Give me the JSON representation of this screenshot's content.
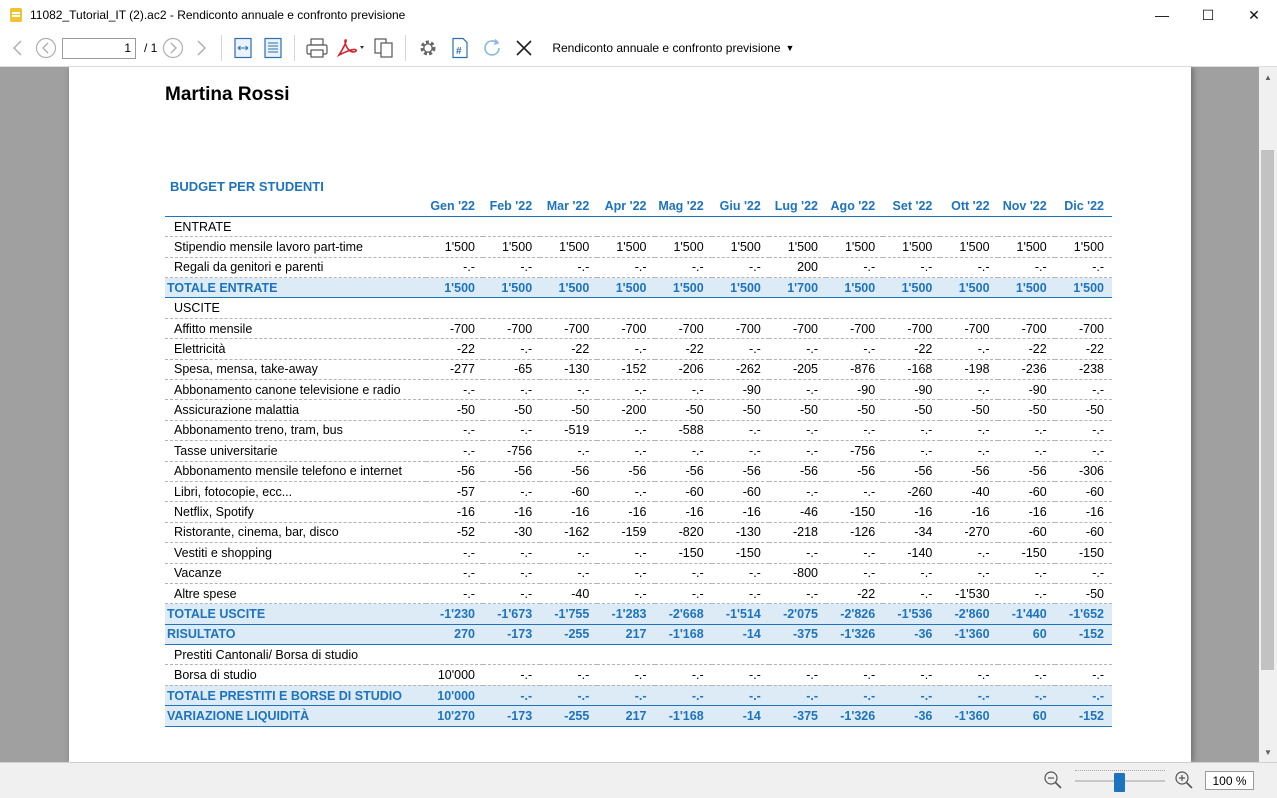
{
  "window": {
    "title": "11082_Tutorial_IT (2).ac2 - Rendiconto annuale e confronto previsione",
    "minimize": "—",
    "maximize": "☐",
    "close": "✕"
  },
  "toolbar": {
    "page_value": "1",
    "page_total": "/ 1",
    "report_name": "Rendiconto annuale e confronto previsione",
    "report_caret": "▼"
  },
  "report": {
    "owner": "Martina Rossi",
    "title": "BUDGET PER STUDENTI",
    "months": [
      "Gen '22",
      "Feb '22",
      "Mar '22",
      "Apr '22",
      "Mag '22",
      "Giu '22",
      "Lug '22",
      "Ago '22",
      "Set '22",
      "Ott '22",
      "Nov '22",
      "Dic '22"
    ],
    "rows": [
      {
        "type": "section",
        "label": "ENTRATE"
      },
      {
        "type": "line",
        "label": "Stipendio mensile lavoro part-time",
        "values": [
          "1'500",
          "1'500",
          "1'500",
          "1'500",
          "1'500",
          "1'500",
          "1'500",
          "1'500",
          "1'500",
          "1'500",
          "1'500",
          "1'500"
        ]
      },
      {
        "type": "line",
        "label": "Regali da genitori e parenti",
        "values": [
          "-.-",
          "-.-",
          "-.-",
          "-.-",
          "-.-",
          "-.-",
          "200",
          "-.-",
          "-.-",
          "-.-",
          "-.-",
          "-.-"
        ]
      },
      {
        "type": "total",
        "label": "TOTALE ENTRATE",
        "values": [
          "1'500",
          "1'500",
          "1'500",
          "1'500",
          "1'500",
          "1'500",
          "1'700",
          "1'500",
          "1'500",
          "1'500",
          "1'500",
          "1'500"
        ]
      },
      {
        "type": "section",
        "label": "USCITE"
      },
      {
        "type": "line",
        "label": "Affitto mensile",
        "values": [
          "-700",
          "-700",
          "-700",
          "-700",
          "-700",
          "-700",
          "-700",
          "-700",
          "-700",
          "-700",
          "-700",
          "-700"
        ]
      },
      {
        "type": "line",
        "label": "Elettricità",
        "values": [
          "-22",
          "-.-",
          "-22",
          "-.-",
          "-22",
          "-.-",
          "-.-",
          "-.-",
          "-22",
          "-.-",
          "-22",
          "-22"
        ]
      },
      {
        "type": "line",
        "label": "Spesa, mensa, take-away",
        "values": [
          "-277",
          "-65",
          "-130",
          "-152",
          "-206",
          "-262",
          "-205",
          "-876",
          "-168",
          "-198",
          "-236",
          "-238"
        ]
      },
      {
        "type": "line",
        "label": "Abbonamento canone televisione e radio",
        "values": [
          "-.-",
          "-.-",
          "-.-",
          "-.-",
          "-.-",
          "-90",
          "-.-",
          "-90",
          "-90",
          "-.-",
          "-90",
          "-.-"
        ]
      },
      {
        "type": "line",
        "label": "Assicurazione malattia",
        "values": [
          "-50",
          "-50",
          "-50",
          "-200",
          "-50",
          "-50",
          "-50",
          "-50",
          "-50",
          "-50",
          "-50",
          "-50"
        ]
      },
      {
        "type": "line",
        "label": "Abbonamento treno, tram, bus",
        "values": [
          "-.-",
          "-.-",
          "-519",
          "-.-",
          "-588",
          "-.-",
          "-.-",
          "-.-",
          "-.-",
          "-.-",
          "-.-",
          "-.-"
        ]
      },
      {
        "type": "line",
        "label": "Tasse universitarie",
        "values": [
          "-.-",
          "-756",
          "-.-",
          "-.-",
          "-.-",
          "-.-",
          "-.-",
          "-756",
          "-.-",
          "-.-",
          "-.-",
          "-.-"
        ]
      },
      {
        "type": "line",
        "label": "Abbonamento mensile telefono e internet",
        "values": [
          "-56",
          "-56",
          "-56",
          "-56",
          "-56",
          "-56",
          "-56",
          "-56",
          "-56",
          "-56",
          "-56",
          "-306"
        ]
      },
      {
        "type": "line",
        "label": "Libri, fotocopie, ecc...",
        "values": [
          "-57",
          "-.-",
          "-60",
          "-.-",
          "-60",
          "-60",
          "-.-",
          "-.-",
          "-260",
          "-40",
          "-60",
          "-60"
        ]
      },
      {
        "type": "line",
        "label": "Netflix, Spotify",
        "values": [
          "-16",
          "-16",
          "-16",
          "-16",
          "-16",
          "-16",
          "-46",
          "-150",
          "-16",
          "-16",
          "-16",
          "-16"
        ]
      },
      {
        "type": "line",
        "label": "Ristorante, cinema, bar, disco",
        "values": [
          "-52",
          "-30",
          "-162",
          "-159",
          "-820",
          "-130",
          "-218",
          "-126",
          "-34",
          "-270",
          "-60",
          "-60"
        ]
      },
      {
        "type": "line",
        "label": "Vestiti e shopping",
        "values": [
          "-.-",
          "-.-",
          "-.-",
          "-.-",
          "-150",
          "-150",
          "-.-",
          "-.-",
          "-140",
          "-.-",
          "-150",
          "-150"
        ]
      },
      {
        "type": "line",
        "label": "Vacanze",
        "values": [
          "-.-",
          "-.-",
          "-.-",
          "-.-",
          "-.-",
          "-.-",
          "-800",
          "-.-",
          "-.-",
          "-.-",
          "-.-",
          "-.-"
        ]
      },
      {
        "type": "line",
        "label": "Altre spese",
        "values": [
          "-.-",
          "-.-",
          "-40",
          "-.-",
          "-.-",
          "-.-",
          "-.-",
          "-22",
          "-.-",
          "-1'530",
          "-.-",
          "-50"
        ]
      },
      {
        "type": "total",
        "label": "TOTALE USCITE",
        "values": [
          "-1'230",
          "-1'673",
          "-1'755",
          "-1'283",
          "-2'668",
          "-1'514",
          "-2'075",
          "-2'826",
          "-1'536",
          "-2'860",
          "-1'440",
          "-1'652"
        ]
      },
      {
        "type": "total",
        "label": "RISULTATO",
        "values": [
          "270",
          "-173",
          "-255",
          "217",
          "-1'168",
          "-14",
          "-375",
          "-1'326",
          "-36",
          "-1'360",
          "60",
          "-152"
        ]
      },
      {
        "type": "section",
        "label": "Prestiti Cantonali/ Borsa di studio"
      },
      {
        "type": "line",
        "label": "Borsa di studio",
        "values": [
          "10'000",
          "-.-",
          "-.-",
          "-.-",
          "-.-",
          "-.-",
          "-.-",
          "-.-",
          "-.-",
          "-.-",
          "-.-",
          "-.-"
        ]
      },
      {
        "type": "total",
        "label": "TOTALE PRESTITI E BORSE DI STUDIO",
        "values": [
          "10'000",
          "-.-",
          "-.-",
          "-.-",
          "-.-",
          "-.-",
          "-.-",
          "-.-",
          "-.-",
          "-.-",
          "-.-",
          "-.-"
        ]
      },
      {
        "type": "total",
        "label": "VARIAZIONE LIQUIDITÀ",
        "values": [
          "10'270",
          "-173",
          "-255",
          "217",
          "-1'168",
          "-14",
          "-375",
          "-1'326",
          "-36",
          "-1'360",
          "60",
          "-152"
        ]
      }
    ]
  },
  "status": {
    "zoom": "100 %",
    "zoom_level": 1.0
  },
  "colors": {
    "accent": "#1e73be",
    "total_row_bg": "#dcebf5",
    "viewer_bg": "#a0a0a0"
  },
  "icons": [
    "back-arrow-icon",
    "first-page-icon",
    "last-page-icon",
    "forward-arrow-icon",
    "fit-width-icon",
    "fit-page-icon",
    "print-icon",
    "pdf-icon",
    "copy-icon",
    "settings-gear-icon",
    "numbering-icon",
    "refresh-icon",
    "close-report-icon",
    "zoom-out-icon",
    "zoom-in-icon"
  ]
}
